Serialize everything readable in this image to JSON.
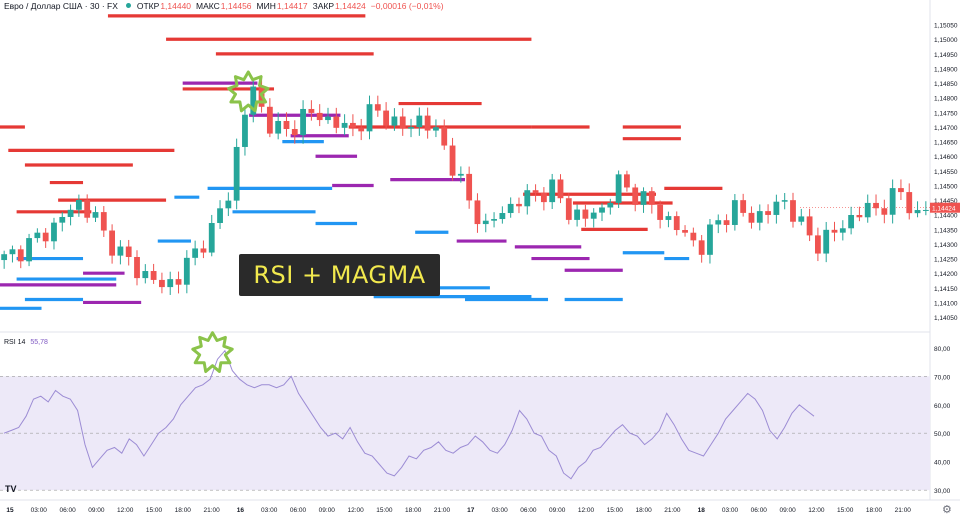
{
  "header": {
    "symbol": "Евро / Доллар США · 30 · FX",
    "open_label": "ОТКР",
    "open_value": "1,14440",
    "high_label": "МАКС",
    "high_value": "1,14456",
    "low_label": "МИН",
    "low_value": "1,14417",
    "close_label": "ЗАКР",
    "close_value": "1,14424",
    "change": "−0,00016 (−0,01%)"
  },
  "banner_text": "RSI + MAGMA",
  "rsi_label": {
    "name": "RSI",
    "length": "14",
    "value": "55,78"
  },
  "colors": {
    "up": "#26a69a",
    "down": "#ef5350",
    "magma_red": "#e53935",
    "magma_purple": "#9c27b0",
    "magma_blue": "#2196f3",
    "rsi_line": "#9c8cd4",
    "rsi_band": "#ede9f8",
    "star": "#8bc34a",
    "banner_bg": "#2a2a2a",
    "banner_text": "#f2e94e"
  },
  "icons": [
    "starburst-icon",
    "tradingview-logo-icon",
    "settings-gear-icon"
  ],
  "chart_data": [
    {
      "type": "candlestick",
      "title": "",
      "ylim": [
        1.1404,
        1.151
      ],
      "y_ticks": [
        "1,15050",
        "1,15000",
        "1,14950",
        "1,14900",
        "1,14850",
        "1,14800",
        "1,14750",
        "1,14700",
        "1,14650",
        "1,14600",
        "1,14550",
        "1,14500",
        "1,14450",
        "1,14400",
        "1,14350",
        "1,14300",
        "1,14250",
        "1,14200",
        "1,14150",
        "1,14100",
        "1,14050"
      ],
      "y_tick_values": [
        1.1505,
        1.15,
        1.1495,
        1.149,
        1.1485,
        1.148,
        1.1475,
        1.147,
        1.1465,
        1.146,
        1.1455,
        1.145,
        1.1445,
        1.144,
        1.1435,
        1.143,
        1.1425,
        1.142,
        1.1415,
        1.141,
        1.1405
      ],
      "current_price": "1,14424",
      "x_ticks": [
        "15",
        "03:00",
        "06:00",
        "09:00",
        "12:00",
        "15:00",
        "18:00",
        "21:00",
        "16",
        "03:00",
        "06:00",
        "09:00",
        "12:00",
        "15:00",
        "18:00",
        "21:00",
        "17",
        "03:00",
        "06:00",
        "09:00",
        "12:00",
        "15:00",
        "18:00",
        "21:00",
        "18",
        "03:00",
        "06:00",
        "09:00",
        "12:00",
        "15:00",
        "18:00",
        "21:00"
      ],
      "close_path": [
        [
          0,
          1.1425
        ],
        [
          2,
          1.1428
        ],
        [
          4,
          1.1432
        ],
        [
          6,
          1.1436
        ],
        [
          8,
          1.1442
        ],
        [
          9,
          1.1444
        ],
        [
          11,
          1.1439
        ],
        [
          12,
          1.1433
        ],
        [
          14,
          1.1427
        ],
        [
          16,
          1.1421
        ],
        [
          18,
          1.1418
        ],
        [
          19,
          1.1415
        ],
        [
          21,
          1.1419
        ],
        [
          23,
          1.1427
        ],
        [
          25,
          1.1435
        ],
        [
          26,
          1.1441
        ],
        [
          27,
          1.1447
        ],
        [
          28,
          1.1462
        ],
        [
          29,
          1.1475
        ],
        [
          30,
          1.1483
        ],
        [
          31,
          1.1476
        ],
        [
          32,
          1.1471
        ],
        [
          34,
          1.1468
        ],
        [
          36,
          1.1474
        ],
        [
          38,
          1.1474
        ],
        [
          40,
          1.1471
        ],
        [
          42,
          1.1469
        ],
        [
          44,
          1.1475
        ],
        [
          46,
          1.1474
        ],
        [
          48,
          1.1469
        ],
        [
          50,
          1.1473
        ],
        [
          52,
          1.1468
        ],
        [
          53,
          1.1463
        ],
        [
          54,
          1.1457
        ],
        [
          55,
          1.1451
        ],
        [
          56,
          1.1444
        ],
        [
          58,
          1.1436
        ],
        [
          60,
          1.1441
        ],
        [
          62,
          1.1445
        ],
        [
          64,
          1.1447
        ],
        [
          66,
          1.1449
        ],
        [
          68,
          1.1441
        ],
        [
          70,
          1.1439
        ],
        [
          72,
          1.1442
        ],
        [
          74,
          1.1451
        ],
        [
          76,
          1.1447
        ],
        [
          78,
          1.1443
        ],
        [
          80,
          1.1438
        ],
        [
          82,
          1.1433
        ],
        [
          84,
          1.1429
        ],
        [
          86,
          1.1438
        ],
        [
          88,
          1.1442
        ],
        [
          90,
          1.1439
        ],
        [
          92,
          1.1441
        ],
        [
          94,
          1.1445
        ],
        [
          96,
          1.1436
        ],
        [
          98,
          1.143
        ],
        [
          100,
          1.1434
        ],
        [
          102,
          1.1439
        ],
        [
          104,
          1.1442
        ],
        [
          106,
          1.1443
        ],
        [
          108,
          1.1448
        ],
        [
          110,
          1.1439
        ],
        [
          111,
          1.1442
        ]
      ],
      "magma_levels": [
        {
          "color": "red",
          "price": 1.1508,
          "from": 13,
          "to": 43
        },
        {
          "color": "red",
          "price": 1.15,
          "from": 20,
          "to": 63
        },
        {
          "color": "red",
          "price": 1.1495,
          "from": 26,
          "to": 44
        },
        {
          "color": "red",
          "price": 1.1483,
          "from": 22,
          "to": 32
        },
        {
          "color": "red",
          "price": 1.1478,
          "from": 48,
          "to": 57
        },
        {
          "color": "red",
          "price": 1.147,
          "from": 0,
          "to": 2
        },
        {
          "color": "red",
          "price": 1.147,
          "from": 42,
          "to": 63
        },
        {
          "color": "red",
          "price": 1.147,
          "from": 64,
          "to": 70
        },
        {
          "color": "red",
          "price": 1.147,
          "from": 75,
          "to": 81
        },
        {
          "color": "red",
          "price": 1.1466,
          "from": 75,
          "to": 81
        },
        {
          "color": "red",
          "price": 1.1462,
          "from": 1,
          "to": 20
        },
        {
          "color": "red",
          "price": 1.1457,
          "from": 3,
          "to": 15
        },
        {
          "color": "red",
          "price": 1.1451,
          "from": 6,
          "to": 9
        },
        {
          "color": "red",
          "price": 1.1445,
          "from": 7,
          "to": 19
        },
        {
          "color": "red",
          "price": 1.1441,
          "from": 2,
          "to": 10
        },
        {
          "color": "red",
          "price": 1.1447,
          "from": 63,
          "to": 78
        },
        {
          "color": "red",
          "price": 1.1444,
          "from": 69,
          "to": 80
        },
        {
          "color": "red",
          "price": 1.1449,
          "from": 80,
          "to": 86
        },
        {
          "color": "red",
          "price": 1.1435,
          "from": 70,
          "to": 77
        },
        {
          "color": "purple",
          "price": 1.1485,
          "from": 22,
          "to": 30
        },
        {
          "color": "purple",
          "price": 1.1474,
          "from": 30,
          "to": 40
        },
        {
          "color": "purple",
          "price": 1.1467,
          "from": 35,
          "to": 41
        },
        {
          "color": "purple",
          "price": 1.146,
          "from": 38,
          "to": 42
        },
        {
          "color": "purple",
          "price": 1.1452,
          "from": 47,
          "to": 55
        },
        {
          "color": "purple",
          "price": 1.145,
          "from": 40,
          "to": 44
        },
        {
          "color": "purple",
          "price": 1.1431,
          "from": 55,
          "to": 60
        },
        {
          "color": "purple",
          "price": 1.1429,
          "from": 62,
          "to": 69
        },
        {
          "color": "purple",
          "price": 1.1425,
          "from": 64,
          "to": 70
        },
        {
          "color": "purple",
          "price": 1.1421,
          "from": 68,
          "to": 74
        },
        {
          "color": "purple",
          "price": 1.1416,
          "from": 0,
          "to": 13
        },
        {
          "color": "purple",
          "price": 1.142,
          "from": 10,
          "to": 14
        },
        {
          "color": "purple",
          "price": 1.141,
          "from": 10,
          "to": 16
        },
        {
          "color": "blue",
          "price": 1.1465,
          "from": 34,
          "to": 38
        },
        {
          "color": "blue",
          "price": 1.1449,
          "from": 25,
          "to": 39
        },
        {
          "color": "blue",
          "price": 1.1446,
          "from": 21,
          "to": 23
        },
        {
          "color": "blue",
          "price": 1.1441,
          "from": 28,
          "to": 37
        },
        {
          "color": "blue",
          "price": 1.1437,
          "from": 38,
          "to": 42
        },
        {
          "color": "blue",
          "price": 1.1434,
          "from": 50,
          "to": 53
        },
        {
          "color": "blue",
          "price": 1.1431,
          "from": 19,
          "to": 22
        },
        {
          "color": "blue",
          "price": 1.1427,
          "from": 75,
          "to": 79
        },
        {
          "color": "blue",
          "price": 1.1425,
          "from": 2,
          "to": 9
        },
        {
          "color": "blue",
          "price": 1.1425,
          "from": 42,
          "to": 45
        },
        {
          "color": "blue",
          "price": 1.1425,
          "from": 80,
          "to": 82
        },
        {
          "color": "blue",
          "price": 1.1418,
          "from": 2,
          "to": 13
        },
        {
          "color": "blue",
          "price": 1.1415,
          "from": 45,
          "to": 58
        },
        {
          "color": "blue",
          "price": 1.1411,
          "from": 3,
          "to": 9
        },
        {
          "color": "blue",
          "price": 1.1412,
          "from": 45,
          "to": 63
        },
        {
          "color": "blue",
          "price": 1.1411,
          "from": 56,
          "to": 65
        },
        {
          "color": "blue",
          "price": 1.1411,
          "from": 68,
          "to": 74
        },
        {
          "color": "blue",
          "price": 1.1408,
          "from": 0,
          "to": 4
        }
      ],
      "highlights": [
        {
          "shape": "star",
          "at_index": 30,
          "price": 1.1483
        }
      ]
    },
    {
      "type": "line",
      "title": "RSI 14",
      "ylim": [
        29,
        81
      ],
      "y_ticks": [
        "80,00",
        "70,00",
        "60,00",
        "50,00",
        "40,00",
        "30,00"
      ],
      "y_tick_values": [
        80,
        70,
        60,
        50,
        40,
        30
      ],
      "band": [
        30,
        70
      ],
      "midline": 50,
      "values": [
        50,
        51,
        52,
        56,
        62,
        63,
        61,
        65,
        63,
        62,
        58,
        46,
        38,
        41,
        44,
        45,
        43,
        48,
        46,
        42,
        46,
        50,
        52,
        55,
        60,
        63,
        66,
        67,
        69,
        76,
        79,
        72,
        69,
        67,
        66,
        67,
        67,
        66,
        67,
        70,
        64,
        60,
        56,
        52,
        49,
        50,
        48,
        52,
        47,
        43,
        42,
        39,
        36,
        35,
        38,
        42,
        41,
        44,
        45,
        47,
        44,
        43,
        45,
        46,
        49,
        47,
        44,
        43,
        46,
        51,
        58,
        55,
        50,
        49,
        44,
        42,
        36,
        34,
        38,
        40,
        44,
        45,
        48,
        51,
        53,
        50,
        49,
        46,
        48,
        51,
        57,
        53,
        48,
        44,
        43,
        42,
        46,
        50,
        55,
        58,
        61,
        64,
        62,
        58,
        51,
        48,
        52,
        57,
        60,
        58,
        56
      ],
      "highlights": [
        {
          "shape": "star",
          "at_index": 29,
          "value": 79
        }
      ]
    }
  ]
}
